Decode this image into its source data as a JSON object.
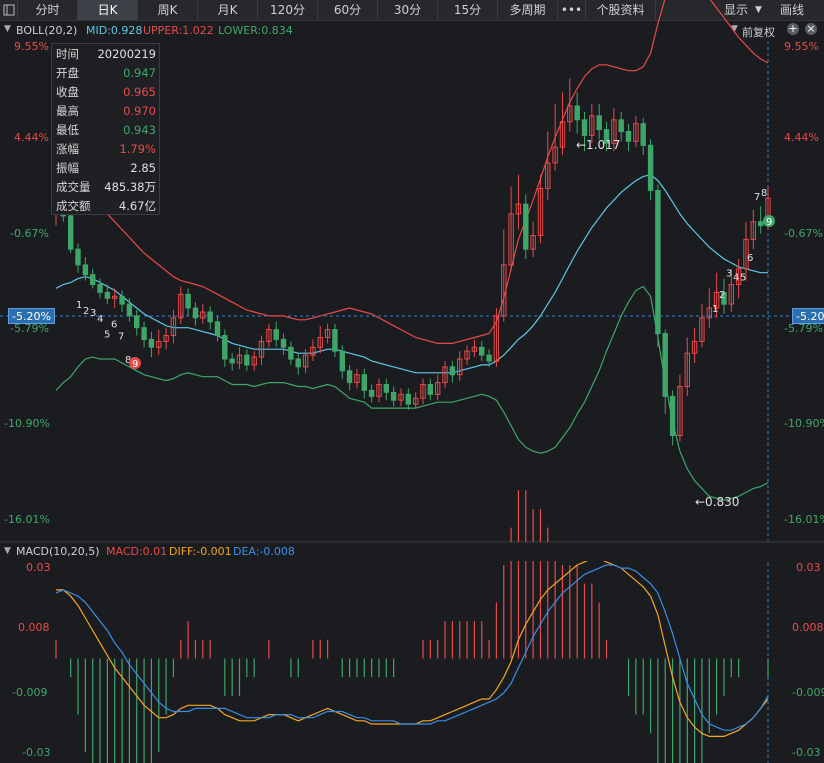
{
  "toolbar": {
    "tabs": [
      "分时",
      "日K",
      "周K",
      "月K",
      "120分",
      "60分",
      "30分",
      "15分",
      "多周期",
      "•••",
      "个股资料"
    ],
    "active_tab": "日K",
    "display_label": "显示",
    "draw_label": "画线"
  },
  "colors": {
    "up": "#e84a4a",
    "down": "#3fa66a",
    "mid": "#5fc8e6",
    "upper": "#e84a4a",
    "lower": "#3fa66a",
    "diff": "#f5a623",
    "dea": "#3a8ee6",
    "bg": "#1b1c20"
  },
  "boll_header": {
    "title": "BOLL(20,2)",
    "mid": "MID:0.928",
    "upper": "UPPER:1.022",
    "lower": "LOWER:0.834",
    "adjust": "前复权"
  },
  "macd_header": {
    "title": "MACD(10,20,5)",
    "macd": "MACD:0.01",
    "diff": "DIFF:-0.001",
    "dea": "DEA:-0.008"
  },
  "price_axis": [
    "9.55%",
    "4.44%",
    "-0.67%",
    "-5.79%",
    "-10.90%",
    "-16.01%"
  ],
  "price_axis_right": [
    "9.55%",
    "4.44%",
    "-0.67%",
    "-5.79%",
    "-10.90%",
    "-16.01%"
  ],
  "macd_axis": [
    "0.03",
    "0.008",
    "-0.009",
    "-0.03"
  ],
  "crosshair_value": "-5.20%",
  "annotations": {
    "high": "←1.017",
    "low": "←0.830"
  },
  "infobox": {
    "rows": [
      {
        "k": "时间",
        "v": "20200219",
        "c": "#e0e0e0"
      },
      {
        "k": "开盘",
        "v": "0.947",
        "c": "#3fa66a"
      },
      {
        "k": "收盘",
        "v": "0.965",
        "c": "#e84a4a"
      },
      {
        "k": "最高",
        "v": "0.970",
        "c": "#e84a4a"
      },
      {
        "k": "最低",
        "v": "0.943",
        "c": "#3fa66a"
      },
      {
        "k": "涨幅",
        "v": "1.79%",
        "c": "#e84a4a"
      },
      {
        "k": "振幅",
        "v": "2.85",
        "c": "#e0e0e0"
      },
      {
        "k": "成交量",
        "v": "485.38万",
        "c": "#e0e0e0"
      },
      {
        "k": "成交额",
        "v": "4.67亿",
        "c": "#e0e0e0"
      }
    ]
  },
  "chart_data": {
    "type": "candlestick",
    "ylim_pct": [
      -16.01,
      9.55
    ],
    "candles": [
      [
        0.948,
        0.952,
        0.958,
        0.942
      ],
      [
        0.952,
        0.947,
        0.956,
        0.944
      ],
      [
        0.947,
        0.93,
        0.95,
        0.928
      ],
      [
        0.93,
        0.922,
        0.933,
        0.918
      ],
      [
        0.922,
        0.917,
        0.926,
        0.914
      ],
      [
        0.917,
        0.912,
        0.92,
        0.91
      ],
      [
        0.912,
        0.908,
        0.915,
        0.905
      ],
      [
        0.908,
        0.905,
        0.912,
        0.902
      ],
      [
        0.905,
        0.906,
        0.91,
        0.9
      ],
      [
        0.906,
        0.902,
        0.909,
        0.898
      ],
      [
        0.902,
        0.896,
        0.905,
        0.893
      ],
      [
        0.896,
        0.89,
        0.899,
        0.886
      ],
      [
        0.89,
        0.884,
        0.893,
        0.88
      ],
      [
        0.884,
        0.88,
        0.888,
        0.875
      ],
      [
        0.88,
        0.883,
        0.889,
        0.876
      ],
      [
        0.883,
        0.886,
        0.89,
        0.879
      ],
      [
        0.886,
        0.895,
        0.899,
        0.882
      ],
      [
        0.895,
        0.907,
        0.911,
        0.892
      ],
      [
        0.907,
        0.9,
        0.91,
        0.896
      ],
      [
        0.9,
        0.895,
        0.903,
        0.891
      ],
      [
        0.895,
        0.898,
        0.902,
        0.892
      ],
      [
        0.898,
        0.893,
        0.901,
        0.889
      ],
      [
        0.893,
        0.886,
        0.896,
        0.883
      ],
      [
        0.886,
        0.874,
        0.889,
        0.87
      ],
      [
        0.874,
        0.872,
        0.877,
        0.868
      ],
      [
        0.872,
        0.876,
        0.88,
        0.869
      ],
      [
        0.876,
        0.871,
        0.879,
        0.868
      ],
      [
        0.871,
        0.875,
        0.878,
        0.868
      ],
      [
        0.875,
        0.883,
        0.886,
        0.871
      ],
      [
        0.883,
        0.889,
        0.892,
        0.88
      ],
      [
        0.889,
        0.884,
        0.893,
        0.88
      ],
      [
        0.884,
        0.88,
        0.887,
        0.876
      ],
      [
        0.88,
        0.874,
        0.883,
        0.871
      ],
      [
        0.874,
        0.87,
        0.877,
        0.866
      ],
      [
        0.87,
        0.876,
        0.879,
        0.867
      ],
      [
        0.876,
        0.88,
        0.884,
        0.873
      ],
      [
        0.88,
        0.885,
        0.891,
        0.877
      ],
      [
        0.885,
        0.889,
        0.892,
        0.882
      ],
      [
        0.889,
        0.878,
        0.892,
        0.875
      ],
      [
        0.878,
        0.868,
        0.881,
        0.864
      ],
      [
        0.868,
        0.862,
        0.871,
        0.858
      ],
      [
        0.862,
        0.866,
        0.869,
        0.859
      ],
      [
        0.866,
        0.858,
        0.869,
        0.854
      ],
      [
        0.858,
        0.855,
        0.861,
        0.852
      ],
      [
        0.855,
        0.861,
        0.864,
        0.852
      ],
      [
        0.861,
        0.857,
        0.864,
        0.853
      ],
      [
        0.857,
        0.853,
        0.86,
        0.85
      ],
      [
        0.853,
        0.856,
        0.859,
        0.85
      ],
      [
        0.856,
        0.851,
        0.859,
        0.848
      ],
      [
        0.851,
        0.854,
        0.857,
        0.849
      ],
      [
        0.854,
        0.861,
        0.864,
        0.851
      ],
      [
        0.861,
        0.856,
        0.864,
        0.853
      ],
      [
        0.856,
        0.862,
        0.866,
        0.853
      ],
      [
        0.862,
        0.87,
        0.873,
        0.859
      ],
      [
        0.87,
        0.866,
        0.873,
        0.862
      ],
      [
        0.866,
        0.874,
        0.878,
        0.863
      ],
      [
        0.874,
        0.878,
        0.881,
        0.871
      ],
      [
        0.878,
        0.88,
        0.884,
        0.875
      ],
      [
        0.88,
        0.876,
        0.883,
        0.873
      ],
      [
        0.876,
        0.873,
        0.879,
        0.87
      ],
      [
        0.873,
        0.896,
        0.9,
        0.87
      ],
      [
        0.896,
        0.922,
        0.94,
        0.893
      ],
      [
        0.922,
        0.948,
        0.962,
        0.919
      ],
      [
        0.948,
        0.953,
        0.968,
        0.94
      ],
      [
        0.953,
        0.93,
        0.958,
        0.925
      ],
      [
        0.93,
        0.937,
        0.944,
        0.926
      ],
      [
        0.937,
        0.961,
        0.968,
        0.933
      ],
      [
        0.961,
        0.974,
        0.99,
        0.955
      ],
      [
        0.974,
        0.982,
        1.004,
        0.97
      ],
      [
        0.982,
        0.995,
        1.01,
        0.978
      ],
      [
        0.995,
        1.003,
        1.017,
        0.99
      ],
      [
        1.003,
        0.996,
        1.01,
        0.989
      ],
      [
        0.996,
        0.988,
        1.0,
        0.98
      ],
      [
        0.988,
        0.998,
        1.004,
        0.984
      ],
      [
        0.998,
        0.991,
        1.004,
        0.986
      ],
      [
        0.991,
        0.984,
        0.995,
        0.98
      ],
      [
        0.984,
        0.996,
        1.002,
        0.98
      ],
      [
        0.996,
        0.99,
        1.0,
        0.985
      ],
      [
        0.99,
        0.985,
        0.994,
        0.98
      ],
      [
        0.985,
        0.994,
        0.998,
        0.982
      ],
      [
        0.994,
        0.983,
        0.997,
        0.978
      ],
      [
        0.983,
        0.96,
        0.986,
        0.955
      ],
      [
        0.96,
        0.887,
        0.963,
        0.88
      ],
      [
        0.887,
        0.855,
        0.889,
        0.846
      ],
      [
        0.855,
        0.835,
        0.858,
        0.83
      ],
      [
        0.835,
        0.86,
        0.866,
        0.832
      ],
      [
        0.86,
        0.877,
        0.885,
        0.855
      ],
      [
        0.877,
        0.883,
        0.89,
        0.872
      ],
      [
        0.883,
        0.895,
        0.902,
        0.88
      ],
      [
        0.895,
        0.9,
        0.91,
        0.89
      ],
      [
        0.9,
        0.908,
        0.918,
        0.895
      ],
      [
        0.908,
        0.902,
        0.915,
        0.897
      ],
      [
        0.902,
        0.912,
        0.92,
        0.898
      ],
      [
        0.912,
        0.92,
        0.925,
        0.905
      ],
      [
        0.92,
        0.935,
        0.944,
        0.914
      ],
      [
        0.935,
        0.944,
        0.95,
        0.93
      ],
      [
        0.944,
        0.942,
        0.952,
        0.938
      ],
      [
        0.942,
        0.956,
        0.962,
        0.94
      ]
    ],
    "boll_mid": [
      0.91,
      0.912,
      0.913,
      0.915,
      0.916,
      0.915,
      0.913,
      0.911,
      0.909,
      0.906,
      0.903,
      0.9,
      0.897,
      0.895,
      0.893,
      0.891,
      0.89,
      0.89,
      0.89,
      0.889,
      0.888,
      0.887,
      0.886,
      0.884,
      0.882,
      0.881,
      0.88,
      0.879,
      0.879,
      0.879,
      0.879,
      0.879,
      0.878,
      0.877,
      0.877,
      0.877,
      0.878,
      0.879,
      0.879,
      0.878,
      0.877,
      0.876,
      0.875,
      0.873,
      0.872,
      0.871,
      0.87,
      0.869,
      0.868,
      0.867,
      0.867,
      0.867,
      0.867,
      0.867,
      0.867,
      0.868,
      0.869,
      0.87,
      0.871,
      0.871,
      0.873,
      0.876,
      0.88,
      0.884,
      0.887,
      0.891,
      0.896,
      0.902,
      0.908,
      0.915,
      0.922,
      0.929,
      0.935,
      0.941,
      0.946,
      0.951,
      0.955,
      0.959,
      0.962,
      0.965,
      0.967,
      0.968,
      0.965,
      0.96,
      0.954,
      0.948,
      0.943,
      0.939,
      0.935,
      0.931,
      0.928,
      0.925,
      0.923,
      0.921,
      0.92,
      0.919,
      0.918,
      0.918
    ],
    "boll_upper": [
      0.962,
      0.962,
      0.961,
      0.96,
      0.958,
      0.955,
      0.952,
      0.948,
      0.944,
      0.94,
      0.936,
      0.932,
      0.928,
      0.925,
      0.922,
      0.919,
      0.916,
      0.914,
      0.913,
      0.912,
      0.911,
      0.909,
      0.907,
      0.905,
      0.903,
      0.901,
      0.899,
      0.898,
      0.897,
      0.896,
      0.896,
      0.896,
      0.895,
      0.894,
      0.894,
      0.895,
      0.896,
      0.897,
      0.898,
      0.899,
      0.9,
      0.899,
      0.898,
      0.897,
      0.895,
      0.893,
      0.891,
      0.889,
      0.887,
      0.885,
      0.884,
      0.883,
      0.882,
      0.882,
      0.882,
      0.883,
      0.884,
      0.885,
      0.886,
      0.887,
      0.893,
      0.905,
      0.92,
      0.935,
      0.945,
      0.955,
      0.966,
      0.977,
      0.987,
      0.996,
      1.005,
      1.012,
      1.018,
      1.022,
      1.024,
      1.024,
      1.023,
      1.022,
      1.021,
      1.021,
      1.023,
      1.03,
      1.045,
      1.058,
      1.066,
      1.069,
      1.068,
      1.066,
      1.062,
      1.058,
      1.053,
      1.048,
      1.043,
      1.038,
      1.034,
      1.03,
      1.027,
      1.025
    ],
    "boll_lower": [
      0.858,
      0.862,
      0.865,
      0.87,
      0.874,
      0.875,
      0.874,
      0.874,
      0.874,
      0.872,
      0.87,
      0.868,
      0.866,
      0.865,
      0.864,
      0.863,
      0.864,
      0.866,
      0.867,
      0.866,
      0.865,
      0.865,
      0.865,
      0.863,
      0.861,
      0.861,
      0.861,
      0.86,
      0.861,
      0.862,
      0.862,
      0.862,
      0.861,
      0.86,
      0.86,
      0.859,
      0.86,
      0.861,
      0.86,
      0.857,
      0.854,
      0.853,
      0.852,
      0.849,
      0.849,
      0.849,
      0.849,
      0.849,
      0.849,
      0.849,
      0.85,
      0.851,
      0.852,
      0.852,
      0.852,
      0.853,
      0.854,
      0.855,
      0.856,
      0.855,
      0.853,
      0.847,
      0.84,
      0.833,
      0.829,
      0.827,
      0.826,
      0.827,
      0.829,
      0.834,
      0.839,
      0.846,
      0.852,
      0.86,
      0.868,
      0.878,
      0.887,
      0.896,
      0.903,
      0.909,
      0.911,
      0.906,
      0.885,
      0.862,
      0.842,
      0.827,
      0.818,
      0.812,
      0.808,
      0.804,
      0.803,
      0.802,
      0.803,
      0.804,
      0.806,
      0.808,
      0.809,
      0.811
    ],
    "macd_ylim": [
      -0.03,
      0.03
    ],
    "diff": [
      0.022,
      0.022,
      0.02,
      0.017,
      0.013,
      0.009,
      0.005,
      0.001,
      -0.003,
      -0.006,
      -0.009,
      -0.012,
      -0.015,
      -0.017,
      -0.019,
      -0.019,
      -0.018,
      -0.016,
      -0.015,
      -0.015,
      -0.015,
      -0.015,
      -0.016,
      -0.018,
      -0.019,
      -0.02,
      -0.02,
      -0.02,
      -0.019,
      -0.018,
      -0.018,
      -0.018,
      -0.019,
      -0.02,
      -0.019,
      -0.018,
      -0.017,
      -0.016,
      -0.017,
      -0.018,
      -0.019,
      -0.02,
      -0.02,
      -0.021,
      -0.021,
      -0.021,
      -0.021,
      -0.021,
      -0.021,
      -0.021,
      -0.02,
      -0.02,
      -0.019,
      -0.018,
      -0.017,
      -0.016,
      -0.015,
      -0.014,
      -0.013,
      -0.013,
      -0.01,
      -0.006,
      -0.001,
      0.006,
      0.011,
      0.015,
      0.019,
      0.022,
      0.024,
      0.026,
      0.028,
      0.03,
      0.031,
      0.032,
      0.032,
      0.031,
      0.03,
      0.029,
      0.027,
      0.025,
      0.023,
      0.02,
      0.014,
      0.004,
      -0.006,
      -0.014,
      -0.019,
      -0.022,
      -0.024,
      -0.025,
      -0.025,
      -0.025,
      -0.024,
      -0.023,
      -0.021,
      -0.019,
      -0.016,
      -0.013
    ],
    "dea": [
      0.021,
      0.022,
      0.021,
      0.02,
      0.018,
      0.015,
      0.012,
      0.009,
      0.005,
      0.002,
      -0.002,
      -0.005,
      -0.008,
      -0.011,
      -0.014,
      -0.016,
      -0.017,
      -0.017,
      -0.017,
      -0.016,
      -0.016,
      -0.016,
      -0.016,
      -0.016,
      -0.017,
      -0.018,
      -0.019,
      -0.019,
      -0.019,
      -0.019,
      -0.018,
      -0.018,
      -0.018,
      -0.019,
      -0.019,
      -0.019,
      -0.018,
      -0.017,
      -0.017,
      -0.017,
      -0.018,
      -0.019,
      -0.019,
      -0.02,
      -0.02,
      -0.02,
      -0.02,
      -0.021,
      -0.021,
      -0.021,
      -0.021,
      -0.021,
      -0.02,
      -0.02,
      -0.019,
      -0.018,
      -0.017,
      -0.016,
      -0.015,
      -0.014,
      -0.013,
      -0.011,
      -0.008,
      -0.003,
      0.002,
      0.007,
      0.011,
      0.015,
      0.018,
      0.021,
      0.023,
      0.025,
      0.027,
      0.028,
      0.029,
      0.03,
      0.03,
      0.029,
      0.029,
      0.028,
      0.026,
      0.024,
      0.021,
      0.015,
      0.008,
      0.0,
      -0.008,
      -0.013,
      -0.018,
      -0.021,
      -0.022,
      -0.023,
      -0.023,
      -0.022,
      -0.021,
      -0.019,
      -0.016,
      -0.012
    ],
    "numbers": [
      [
        "1",
        0.902,
        false
      ],
      [
        "2",
        0.899,
        false
      ],
      [
        "3",
        0.898,
        false
      ],
      [
        "4",
        0.895,
        false
      ],
      [
        "5",
        0.887,
        false
      ],
      [
        "6",
        0.892,
        false
      ],
      [
        "7",
        0.886,
        false
      ],
      [
        "8",
        0.874,
        false
      ],
      [
        "9",
        0.872,
        true
      ]
    ]
  }
}
